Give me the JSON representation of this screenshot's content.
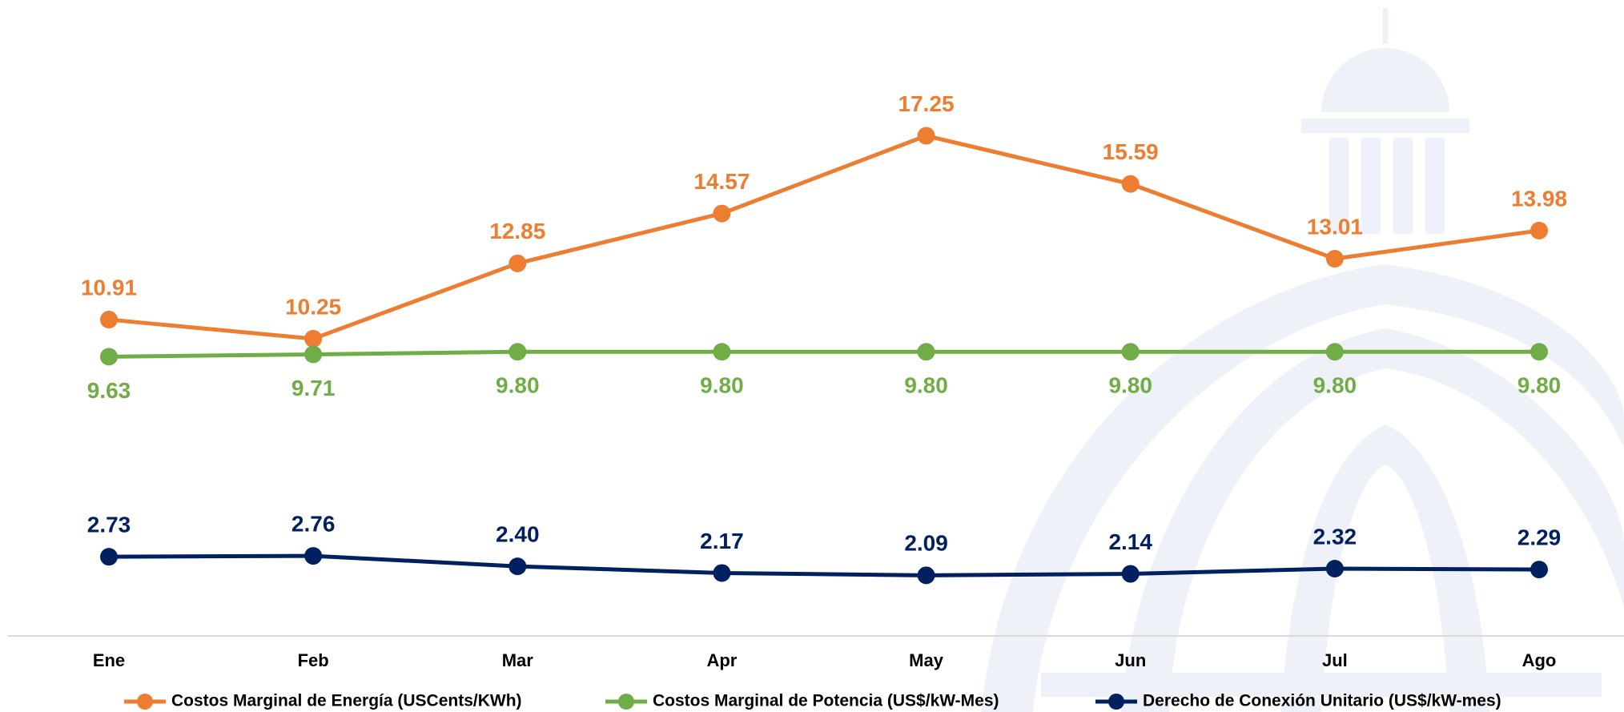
{
  "chart_data": {
    "type": "line",
    "categories": [
      "Ene",
      "Feb",
      "Mar",
      "Apr",
      "May",
      "Jun",
      "Jul",
      "Ago"
    ],
    "series": [
      {
        "name": "Costos Marginal de Energía (USCents/KWh)",
        "color": "#ED7D31",
        "values": [
          10.91,
          10.25,
          12.85,
          14.57,
          17.25,
          15.59,
          13.01,
          13.98
        ],
        "value_labels": [
          "10.91",
          "10.25",
          "12.85",
          "14.57",
          "17.25",
          "15.59",
          "13.01",
          "13.98"
        ]
      },
      {
        "name": "Costos Marginal de Potencia  (US$/kW-Mes)",
        "color": "#70AD47",
        "values": [
          9.63,
          9.71,
          9.8,
          9.8,
          9.8,
          9.8,
          9.8,
          9.8
        ],
        "value_labels": [
          "9.63",
          "9.71",
          "9.80",
          "9.80",
          "9.80",
          "9.80",
          "9.80",
          "9.80"
        ]
      },
      {
        "name": "Derecho de Conexión Unitario (US$/kW-mes)",
        "color": "#002060",
        "values": [
          2.73,
          2.76,
          2.4,
          2.17,
          2.09,
          2.14,
          2.32,
          2.29
        ],
        "value_labels": [
          "2.73",
          "2.76",
          "2.40",
          "2.17",
          "2.09",
          "2.14",
          "2.32",
          "2.29"
        ]
      }
    ],
    "ylim": [
      0,
      20
    ]
  }
}
